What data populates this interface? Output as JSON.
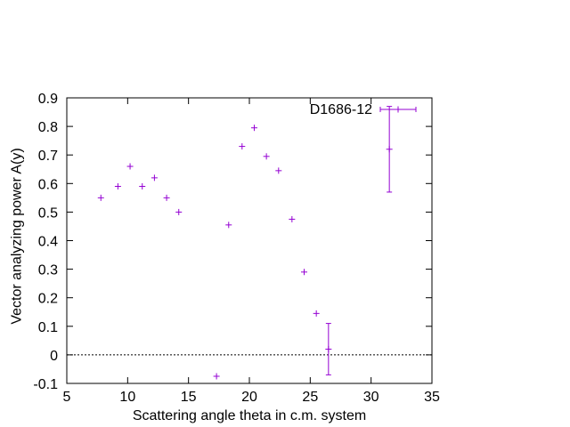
{
  "chart_data": {
    "type": "scatter",
    "title": "",
    "xlabel": "Scattering angle theta in c.m. system",
    "ylabel": "Vector analyzing power A(y)",
    "xlim": [
      5,
      35
    ],
    "ylim": [
      -0.1,
      0.9
    ],
    "xticks": [
      5,
      10,
      15,
      20,
      25,
      30,
      35
    ],
    "yticks": [
      -0.1,
      0,
      0.1,
      0.2,
      0.3,
      0.4,
      0.5,
      0.6,
      0.7,
      0.8,
      0.9
    ],
    "xtick_labels": [
      "5",
      "10",
      "15",
      "20",
      "25",
      "30",
      "35"
    ],
    "ytick_labels": [
      "-0.1",
      "0",
      "0.1",
      "0.2",
      "0.3",
      "0.4",
      "0.5",
      "0.6",
      "0.7",
      "0.8",
      "0.9"
    ],
    "zero_line": true,
    "grid": false,
    "legend_position": "top-right",
    "color": "#9400d3",
    "series": [
      {
        "name": "D1686-12",
        "points": [
          {
            "x": 7.8,
            "y": 0.55
          },
          {
            "x": 9.2,
            "y": 0.59
          },
          {
            "x": 10.2,
            "y": 0.66
          },
          {
            "x": 11.2,
            "y": 0.59
          },
          {
            "x": 12.2,
            "y": 0.62
          },
          {
            "x": 13.2,
            "y": 0.55
          },
          {
            "x": 14.2,
            "y": 0.5
          },
          {
            "x": 17.3,
            "y": -0.075
          },
          {
            "x": 18.3,
            "y": 0.455
          },
          {
            "x": 19.4,
            "y": 0.73
          },
          {
            "x": 20.4,
            "y": 0.795
          },
          {
            "x": 21.4,
            "y": 0.695
          },
          {
            "x": 22.4,
            "y": 0.645
          },
          {
            "x": 23.5,
            "y": 0.475
          },
          {
            "x": 24.5,
            "y": 0.29
          },
          {
            "x": 25.5,
            "y": 0.145
          },
          {
            "x": 26.5,
            "y": 0.02,
            "yerr": 0.09
          },
          {
            "x": 31.5,
            "y": 0.72,
            "yerr": 0.15
          }
        ]
      }
    ]
  }
}
